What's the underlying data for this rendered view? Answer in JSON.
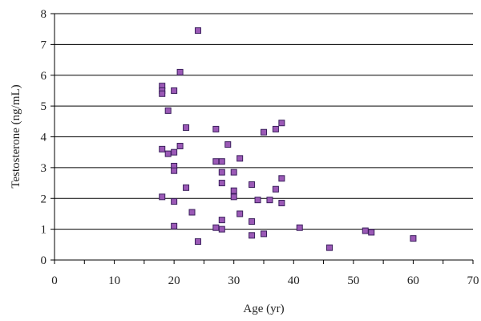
{
  "chart_data": {
    "type": "scatter",
    "title": "",
    "xlabel": "Age (yr)",
    "ylabel": "Testosterone (ng/mL)",
    "xlim": [
      0,
      70
    ],
    "ylim": [
      0,
      8
    ],
    "x_ticks": [
      "0",
      "10",
      "20",
      "30",
      "40",
      "50",
      "60",
      "70"
    ],
    "y_ticks": [
      "0",
      "1",
      "2",
      "3",
      "4",
      "5",
      "6",
      "7",
      "8"
    ],
    "grid": "horizontal",
    "marker_color": "#9b59b6",
    "marker_edge_color": "#3a1f5c",
    "points": [
      {
        "x": 18,
        "y": 5.65
      },
      {
        "x": 18,
        "y": 5.5
      },
      {
        "x": 18,
        "y": 5.4
      },
      {
        "x": 19,
        "y": 4.85
      },
      {
        "x": 18,
        "y": 3.6
      },
      {
        "x": 19,
        "y": 3.45
      },
      {
        "x": 18,
        "y": 2.05
      },
      {
        "x": 20,
        "y": 5.5
      },
      {
        "x": 20,
        "y": 3.5
      },
      {
        "x": 20,
        "y": 3.05
      },
      {
        "x": 20,
        "y": 2.9
      },
      {
        "x": 20,
        "y": 1.9
      },
      {
        "x": 20,
        "y": 1.1
      },
      {
        "x": 21,
        "y": 6.1
      },
      {
        "x": 21,
        "y": 3.7
      },
      {
        "x": 22,
        "y": 4.3
      },
      {
        "x": 22,
        "y": 2.35
      },
      {
        "x": 23,
        "y": 1.55
      },
      {
        "x": 24,
        "y": 7.45
      },
      {
        "x": 24,
        "y": 0.6
      },
      {
        "x": 27,
        "y": 4.25
      },
      {
        "x": 27,
        "y": 3.2
      },
      {
        "x": 28,
        "y": 3.2
      },
      {
        "x": 28,
        "y": 2.85
      },
      {
        "x": 28,
        "y": 2.5
      },
      {
        "x": 28,
        "y": 1.3
      },
      {
        "x": 27,
        "y": 1.05
      },
      {
        "x": 28,
        "y": 1.0
      },
      {
        "x": 29,
        "y": 3.75
      },
      {
        "x": 30,
        "y": 2.85
      },
      {
        "x": 30,
        "y": 2.25
      },
      {
        "x": 30,
        "y": 2.05
      },
      {
        "x": 31,
        "y": 3.3
      },
      {
        "x": 31,
        "y": 1.5
      },
      {
        "x": 33,
        "y": 2.45
      },
      {
        "x": 33,
        "y": 1.25
      },
      {
        "x": 33,
        "y": 0.8
      },
      {
        "x": 34,
        "y": 1.95
      },
      {
        "x": 35,
        "y": 4.15
      },
      {
        "x": 35,
        "y": 0.85
      },
      {
        "x": 36,
        "y": 1.95
      },
      {
        "x": 37,
        "y": 4.25
      },
      {
        "x": 37,
        "y": 2.3
      },
      {
        "x": 38,
        "y": 4.45
      },
      {
        "x": 38,
        "y": 2.65
      },
      {
        "x": 38,
        "y": 1.85
      },
      {
        "x": 41,
        "y": 1.05
      },
      {
        "x": 46,
        "y": 0.4
      },
      {
        "x": 52,
        "y": 0.95
      },
      {
        "x": 53,
        "y": 0.9
      },
      {
        "x": 60,
        "y": 0.7
      }
    ]
  }
}
